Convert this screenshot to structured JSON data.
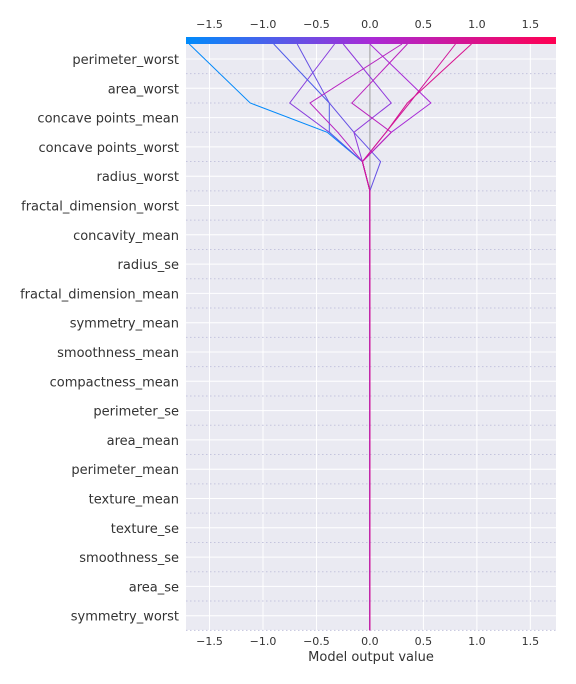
{
  "chart_data": {
    "type": "line",
    "subtype": "shap-decision-plot",
    "title": "",
    "xlabel": "Model output value",
    "ylabel": "",
    "xlim": [
      -1.72,
      1.74
    ],
    "xticks": [
      "−1.5",
      "−1.0",
      "−0.5",
      "0.0",
      "0.5",
      "1.0",
      "1.5"
    ],
    "xtick_values": [
      -1.5,
      -1.0,
      -0.5,
      0.0,
      0.5,
      1.0,
      1.5
    ],
    "base_value": 0.0,
    "grid": true,
    "background": "#eaeaf2",
    "colorbar": {
      "position": "top",
      "cmap_start": "#008bfb",
      "cmap_mid": "#a92ad6",
      "cmap_end": "#ff0052"
    },
    "features": [
      "symmetry_worst",
      "area_se",
      "smoothness_se",
      "texture_se",
      "texture_mean",
      "perimeter_mean",
      "area_mean",
      "perimeter_se",
      "compactness_mean",
      "smoothness_mean",
      "symmetry_mean",
      "fractal_dimension_mean",
      "radius_se",
      "concavity_mean",
      "fractal_dimension_worst",
      "radius_worst",
      "concave points_worst",
      "concave points_mean",
      "area_worst",
      "perimeter_worst"
    ],
    "series": [
      {
        "values": [
          0,
          0,
          0,
          0,
          0,
          0,
          0,
          0,
          0,
          0,
          0,
          0,
          0,
          0,
          0,
          0,
          -0.07,
          -0.4,
          -1.12,
          -1.69
        ]
      },
      {
        "values": [
          0,
          0,
          0,
          0,
          0,
          0,
          0,
          0,
          0,
          0,
          0,
          0,
          0,
          0,
          0,
          0,
          -0.07,
          -0.38,
          -0.75,
          -0.33
        ]
      },
      {
        "values": [
          0,
          0,
          0,
          0,
          0,
          0,
          0,
          0,
          0,
          0,
          0,
          0,
          0,
          0,
          0,
          0,
          -0.07,
          -0.38,
          -0.38,
          -0.9
        ]
      },
      {
        "values": [
          0,
          0,
          0,
          0,
          0,
          0,
          0,
          0,
          0,
          0,
          0,
          0,
          0,
          0,
          0,
          0,
          0.1,
          -0.15,
          -0.38,
          -0.68
        ]
      },
      {
        "values": [
          0,
          0,
          0,
          0,
          0,
          0,
          0,
          0,
          0,
          0,
          0,
          0,
          0,
          0,
          0,
          0,
          -0.07,
          -0.15,
          0.2,
          -0.25
        ]
      },
      {
        "values": [
          0,
          0,
          0,
          0,
          0,
          0,
          0,
          0,
          0,
          0,
          0,
          0,
          0,
          0,
          0,
          0,
          -0.07,
          0.2,
          0.57,
          0.0
        ]
      },
      {
        "values": [
          0,
          0,
          0,
          0,
          0,
          0,
          0,
          0,
          0,
          0,
          0,
          0,
          0,
          0,
          0,
          0,
          -0.07,
          0.2,
          -0.17,
          0.35
        ]
      },
      {
        "values": [
          0,
          0,
          0,
          0,
          0,
          0,
          0,
          0,
          0,
          0,
          0,
          0,
          0,
          0,
          0,
          0,
          -0.07,
          -0.3,
          -0.56,
          0.3
        ]
      },
      {
        "values": [
          0,
          0,
          0,
          0,
          0,
          0,
          0,
          0,
          0,
          0,
          0,
          0,
          0,
          0,
          0,
          0,
          -0.07,
          0.15,
          0.35,
          0.95
        ]
      },
      {
        "values": [
          0,
          0,
          0,
          0,
          0,
          0,
          0,
          0,
          0,
          0,
          0,
          0,
          0,
          0,
          0,
          0,
          -0.07,
          0.15,
          0.37,
          0.8
        ]
      }
    ]
  }
}
